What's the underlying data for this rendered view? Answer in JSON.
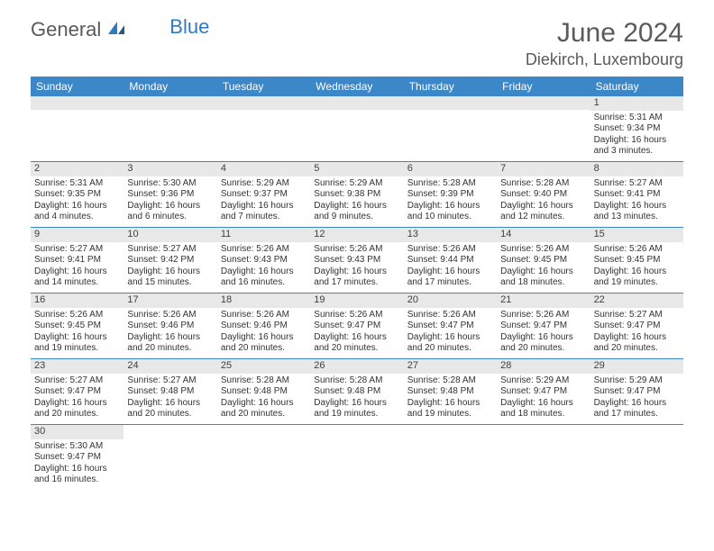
{
  "logo": {
    "general": "General",
    "blue": "Blue"
  },
  "title": "June 2024",
  "location": "Diekirch, Luxembourg",
  "colors": {
    "header_bg": "#3b87c8",
    "header_text": "#ffffff",
    "daynum_bg": "#e8e8e8",
    "row_border": "#3b87c8",
    "text": "#333333",
    "logo_gray": "#5a5a5a",
    "logo_blue": "#2f7ac0"
  },
  "day_headers": [
    "Sunday",
    "Monday",
    "Tuesday",
    "Wednesday",
    "Thursday",
    "Friday",
    "Saturday"
  ],
  "weeks": [
    [
      null,
      null,
      null,
      null,
      null,
      null,
      {
        "n": "1",
        "sr": "Sunrise: 5:31 AM",
        "ss": "Sunset: 9:34 PM",
        "d1": "Daylight: 16 hours",
        "d2": "and 3 minutes."
      }
    ],
    [
      {
        "n": "2",
        "sr": "Sunrise: 5:31 AM",
        "ss": "Sunset: 9:35 PM",
        "d1": "Daylight: 16 hours",
        "d2": "and 4 minutes."
      },
      {
        "n": "3",
        "sr": "Sunrise: 5:30 AM",
        "ss": "Sunset: 9:36 PM",
        "d1": "Daylight: 16 hours",
        "d2": "and 6 minutes."
      },
      {
        "n": "4",
        "sr": "Sunrise: 5:29 AM",
        "ss": "Sunset: 9:37 PM",
        "d1": "Daylight: 16 hours",
        "d2": "and 7 minutes."
      },
      {
        "n": "5",
        "sr": "Sunrise: 5:29 AM",
        "ss": "Sunset: 9:38 PM",
        "d1": "Daylight: 16 hours",
        "d2": "and 9 minutes."
      },
      {
        "n": "6",
        "sr": "Sunrise: 5:28 AM",
        "ss": "Sunset: 9:39 PM",
        "d1": "Daylight: 16 hours",
        "d2": "and 10 minutes."
      },
      {
        "n": "7",
        "sr": "Sunrise: 5:28 AM",
        "ss": "Sunset: 9:40 PM",
        "d1": "Daylight: 16 hours",
        "d2": "and 12 minutes."
      },
      {
        "n": "8",
        "sr": "Sunrise: 5:27 AM",
        "ss": "Sunset: 9:41 PM",
        "d1": "Daylight: 16 hours",
        "d2": "and 13 minutes."
      }
    ],
    [
      {
        "n": "9",
        "sr": "Sunrise: 5:27 AM",
        "ss": "Sunset: 9:41 PM",
        "d1": "Daylight: 16 hours",
        "d2": "and 14 minutes."
      },
      {
        "n": "10",
        "sr": "Sunrise: 5:27 AM",
        "ss": "Sunset: 9:42 PM",
        "d1": "Daylight: 16 hours",
        "d2": "and 15 minutes."
      },
      {
        "n": "11",
        "sr": "Sunrise: 5:26 AM",
        "ss": "Sunset: 9:43 PM",
        "d1": "Daylight: 16 hours",
        "d2": "and 16 minutes."
      },
      {
        "n": "12",
        "sr": "Sunrise: 5:26 AM",
        "ss": "Sunset: 9:43 PM",
        "d1": "Daylight: 16 hours",
        "d2": "and 17 minutes."
      },
      {
        "n": "13",
        "sr": "Sunrise: 5:26 AM",
        "ss": "Sunset: 9:44 PM",
        "d1": "Daylight: 16 hours",
        "d2": "and 17 minutes."
      },
      {
        "n": "14",
        "sr": "Sunrise: 5:26 AM",
        "ss": "Sunset: 9:45 PM",
        "d1": "Daylight: 16 hours",
        "d2": "and 18 minutes."
      },
      {
        "n": "15",
        "sr": "Sunrise: 5:26 AM",
        "ss": "Sunset: 9:45 PM",
        "d1": "Daylight: 16 hours",
        "d2": "and 19 minutes."
      }
    ],
    [
      {
        "n": "16",
        "sr": "Sunrise: 5:26 AM",
        "ss": "Sunset: 9:45 PM",
        "d1": "Daylight: 16 hours",
        "d2": "and 19 minutes."
      },
      {
        "n": "17",
        "sr": "Sunrise: 5:26 AM",
        "ss": "Sunset: 9:46 PM",
        "d1": "Daylight: 16 hours",
        "d2": "and 20 minutes."
      },
      {
        "n": "18",
        "sr": "Sunrise: 5:26 AM",
        "ss": "Sunset: 9:46 PM",
        "d1": "Daylight: 16 hours",
        "d2": "and 20 minutes."
      },
      {
        "n": "19",
        "sr": "Sunrise: 5:26 AM",
        "ss": "Sunset: 9:47 PM",
        "d1": "Daylight: 16 hours",
        "d2": "and 20 minutes."
      },
      {
        "n": "20",
        "sr": "Sunrise: 5:26 AM",
        "ss": "Sunset: 9:47 PM",
        "d1": "Daylight: 16 hours",
        "d2": "and 20 minutes."
      },
      {
        "n": "21",
        "sr": "Sunrise: 5:26 AM",
        "ss": "Sunset: 9:47 PM",
        "d1": "Daylight: 16 hours",
        "d2": "and 20 minutes."
      },
      {
        "n": "22",
        "sr": "Sunrise: 5:27 AM",
        "ss": "Sunset: 9:47 PM",
        "d1": "Daylight: 16 hours",
        "d2": "and 20 minutes."
      }
    ],
    [
      {
        "n": "23",
        "sr": "Sunrise: 5:27 AM",
        "ss": "Sunset: 9:47 PM",
        "d1": "Daylight: 16 hours",
        "d2": "and 20 minutes."
      },
      {
        "n": "24",
        "sr": "Sunrise: 5:27 AM",
        "ss": "Sunset: 9:48 PM",
        "d1": "Daylight: 16 hours",
        "d2": "and 20 minutes."
      },
      {
        "n": "25",
        "sr": "Sunrise: 5:28 AM",
        "ss": "Sunset: 9:48 PM",
        "d1": "Daylight: 16 hours",
        "d2": "and 20 minutes."
      },
      {
        "n": "26",
        "sr": "Sunrise: 5:28 AM",
        "ss": "Sunset: 9:48 PM",
        "d1": "Daylight: 16 hours",
        "d2": "and 19 minutes."
      },
      {
        "n": "27",
        "sr": "Sunrise: 5:28 AM",
        "ss": "Sunset: 9:48 PM",
        "d1": "Daylight: 16 hours",
        "d2": "and 19 minutes."
      },
      {
        "n": "28",
        "sr": "Sunrise: 5:29 AM",
        "ss": "Sunset: 9:47 PM",
        "d1": "Daylight: 16 hours",
        "d2": "and 18 minutes."
      },
      {
        "n": "29",
        "sr": "Sunrise: 5:29 AM",
        "ss": "Sunset: 9:47 PM",
        "d1": "Daylight: 16 hours",
        "d2": "and 17 minutes."
      }
    ],
    [
      {
        "n": "30",
        "sr": "Sunrise: 5:30 AM",
        "ss": "Sunset: 9:47 PM",
        "d1": "Daylight: 16 hours",
        "d2": "and 16 minutes."
      },
      null,
      null,
      null,
      null,
      null,
      null
    ]
  ]
}
